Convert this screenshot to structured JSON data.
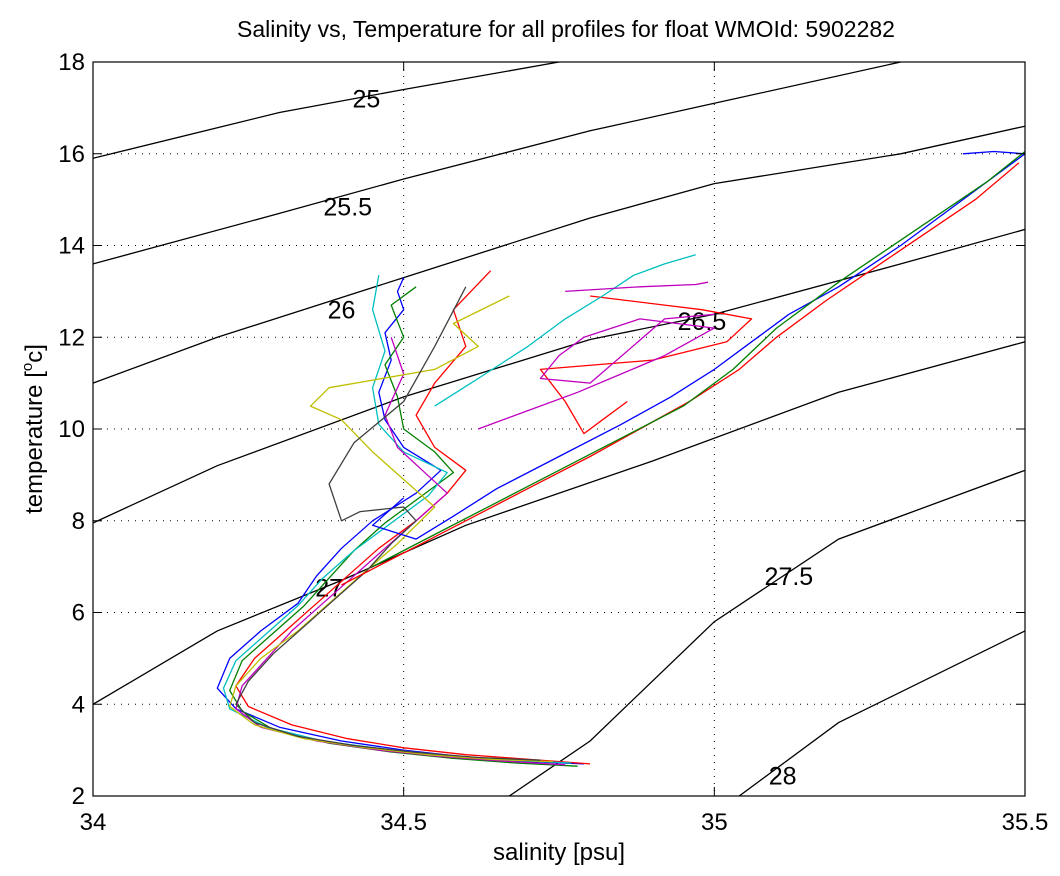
{
  "chart_data": {
    "type": "line",
    "title": "Salinity vs, Temperature for all profiles for float WMOId: 5902282",
    "xlabel": "salinity [psu]",
    "ylabel": "temperature [",
    "ylabel_sup": "o",
    "ylabel_unit": "c]",
    "xlim": [
      34,
      35.5
    ],
    "ylim": [
      2,
      18
    ],
    "xticks": [
      34,
      34.5,
      35,
      35.5
    ],
    "xtick_labels": [
      "34",
      "34.5",
      "35",
      "35.5"
    ],
    "yticks": [
      2,
      4,
      6,
      8,
      10,
      12,
      14,
      16,
      18
    ],
    "ytick_labels": [
      "2",
      "4",
      "6",
      "8",
      "10",
      "12",
      "14",
      "16",
      "18"
    ],
    "grid": true,
    "density_contours": [
      {
        "label": "25",
        "points": [
          [
            34.0,
            15.9
          ],
          [
            34.3,
            16.9
          ],
          [
            34.5,
            17.4
          ],
          [
            34.75,
            18.0
          ]
        ],
        "label_at": [
          34.44,
          17.2
        ]
      },
      {
        "label": "25.5",
        "points": [
          [
            34.0,
            13.6
          ],
          [
            34.3,
            14.7
          ],
          [
            34.5,
            15.45
          ],
          [
            34.8,
            16.5
          ],
          [
            35.0,
            17.1
          ],
          [
            35.3,
            18.0
          ]
        ],
        "label_at": [
          34.41,
          14.85
        ]
      },
      {
        "label": "26",
        "points": [
          [
            34.0,
            11.0
          ],
          [
            34.2,
            12.0
          ],
          [
            34.5,
            13.3
          ],
          [
            34.8,
            14.6
          ],
          [
            35.0,
            15.35
          ],
          [
            35.3,
            16.0
          ],
          [
            35.5,
            16.6
          ]
        ],
        "label_at": [
          34.4,
          12.6
        ]
      },
      {
        "label": "26.5",
        "points": [
          [
            34.0,
            7.95
          ],
          [
            34.2,
            9.2
          ],
          [
            34.5,
            10.7
          ],
          [
            34.8,
            11.95
          ],
          [
            35.0,
            12.5
          ],
          [
            35.3,
            13.6
          ],
          [
            35.5,
            14.35
          ]
        ],
        "label_at": [
          34.98,
          12.35
        ]
      },
      {
        "label": "27",
        "points": [
          [
            34.0,
            4.0
          ],
          [
            34.2,
            5.6
          ],
          [
            34.4,
            6.7
          ],
          [
            34.6,
            7.9
          ],
          [
            34.9,
            9.3
          ],
          [
            35.2,
            10.8
          ],
          [
            35.5,
            11.9
          ]
        ],
        "label_at": [
          34.38,
          6.55
        ]
      },
      {
        "label": "27.5",
        "points": [
          [
            34.67,
            2.0
          ],
          [
            34.8,
            3.2
          ],
          [
            35.0,
            5.8
          ],
          [
            35.2,
            7.6
          ],
          [
            35.5,
            9.1
          ]
        ],
        "label_at": [
          35.12,
          6.8
        ]
      },
      {
        "label": "28",
        "points": [
          [
            35.04,
            2.0
          ],
          [
            35.2,
            3.6
          ],
          [
            35.5,
            5.6
          ]
        ],
        "label_at": [
          35.11,
          2.45
        ]
      }
    ],
    "series": [
      {
        "color": "#0000ff",
        "x": [
          34.79,
          34.7,
          34.6,
          34.5,
          34.4,
          34.3,
          34.23,
          34.2,
          34.22,
          34.27,
          34.33,
          34.36,
          34.4,
          34.45,
          34.52,
          34.56,
          34.5,
          34.47,
          34.46,
          34.48,
          34.47,
          34.5,
          34.49,
          34.5
        ],
        "y": [
          2.7,
          2.75,
          2.85,
          3.0,
          3.2,
          3.5,
          3.9,
          4.35,
          5.0,
          5.6,
          6.2,
          6.8,
          7.4,
          8.0,
          8.6,
          9.1,
          9.6,
          10.2,
          10.8,
          11.5,
          12.1,
          12.6,
          13.0,
          13.3
        ]
      },
      {
        "color": "#008000",
        "x": [
          34.78,
          34.68,
          34.58,
          34.48,
          34.38,
          34.29,
          34.24,
          34.22,
          34.24,
          34.29,
          34.34,
          34.38,
          34.42,
          34.47,
          34.53,
          34.58,
          34.55,
          34.5,
          34.49,
          34.47,
          34.5,
          34.48,
          34.52
        ],
        "y": [
          2.65,
          2.72,
          2.82,
          2.96,
          3.15,
          3.45,
          3.85,
          4.3,
          4.95,
          5.55,
          6.15,
          6.75,
          7.35,
          7.95,
          8.55,
          9.05,
          9.5,
          10.0,
          10.7,
          11.4,
          12.0,
          12.7,
          13.1
        ]
      },
      {
        "color": "#ff0000",
        "x": [
          34.8,
          34.7,
          34.6,
          34.5,
          34.41,
          34.32,
          34.25,
          34.23,
          34.26,
          34.31,
          34.36,
          34.41,
          34.46,
          34.52,
          34.57,
          34.6,
          34.55,
          34.52,
          34.55,
          34.6,
          34.58,
          34.64
        ],
        "y": [
          2.7,
          2.8,
          2.9,
          3.05,
          3.25,
          3.55,
          3.95,
          4.4,
          5.0,
          5.6,
          6.2,
          6.8,
          7.4,
          8.0,
          8.6,
          9.1,
          9.6,
          10.3,
          11.0,
          11.8,
          12.6,
          13.45
        ]
      },
      {
        "color": "#00bfbf",
        "x": [
          34.77,
          34.67,
          34.57,
          34.47,
          34.37,
          34.28,
          34.22,
          34.21,
          34.23,
          34.28,
          34.33,
          34.37,
          34.42,
          34.48,
          34.54,
          34.57,
          34.5,
          34.46,
          34.45,
          34.47,
          34.45,
          34.46
        ],
        "y": [
          2.72,
          2.78,
          2.88,
          3.02,
          3.2,
          3.5,
          3.9,
          4.35,
          4.95,
          5.55,
          6.15,
          6.75,
          7.35,
          7.95,
          8.55,
          9.05,
          9.5,
          10.1,
          10.9,
          11.7,
          12.6,
          13.35
        ]
      },
      {
        "color": "#bf00bf",
        "x": [
          34.76,
          34.66,
          34.56,
          34.46,
          34.36,
          34.27,
          34.23,
          34.24,
          34.28,
          34.32,
          34.37,
          34.42,
          34.47,
          34.52,
          34.57,
          34.53,
          34.49,
          34.47,
          34.5,
          34.48
        ],
        "y": [
          2.68,
          2.76,
          2.86,
          3.0,
          3.2,
          3.5,
          3.9,
          4.4,
          5.0,
          5.6,
          6.2,
          6.8,
          7.4,
          8.0,
          8.6,
          9.1,
          9.6,
          10.3,
          11.2,
          12.0
        ]
      },
      {
        "color": "#bfbf00",
        "x": [
          34.74,
          34.64,
          34.54,
          34.44,
          34.34,
          34.26,
          34.22,
          34.23,
          34.27,
          34.33,
          34.38,
          34.43,
          34.49,
          34.55,
          34.5,
          34.45,
          34.4,
          34.35,
          34.38,
          34.55,
          34.62,
          34.58,
          34.67
        ],
        "y": [
          2.75,
          2.8,
          2.9,
          3.05,
          3.25,
          3.55,
          3.95,
          4.4,
          5.0,
          5.6,
          6.2,
          6.8,
          7.5,
          8.3,
          8.9,
          9.5,
          10.2,
          10.5,
          10.9,
          11.3,
          11.8,
          12.3,
          12.9
        ]
      },
      {
        "color": "#404040",
        "x": [
          34.72,
          34.62,
          34.52,
          34.42,
          34.33,
          34.26,
          34.23,
          34.25,
          34.29,
          34.34,
          34.39,
          34.44,
          34.48,
          34.52,
          34.5,
          34.43,
          34.4,
          34.38,
          34.42,
          34.5,
          34.55,
          34.6
        ],
        "y": [
          2.78,
          2.84,
          2.95,
          3.1,
          3.3,
          3.6,
          4.0,
          4.5,
          5.1,
          5.7,
          6.3,
          6.9,
          7.5,
          8.0,
          8.3,
          8.2,
          8.0,
          8.8,
          9.7,
          10.6,
          11.8,
          13.1
        ]
      },
      {
        "color": "#0000ff",
        "x": [
          34.5,
          34.45,
          34.52,
          34.58,
          34.65,
          34.75,
          34.85,
          34.93,
          35.0,
          35.06,
          35.12,
          35.2,
          35.3,
          35.4,
          35.5,
          35.45,
          35.4
        ],
        "y": [
          8.5,
          7.9,
          7.6,
          8.1,
          8.7,
          9.4,
          10.1,
          10.7,
          11.3,
          11.9,
          12.5,
          13.1,
          14.0,
          15.0,
          16.0,
          16.05,
          16.0
        ]
      },
      {
        "color": "#ff0000",
        "x": [
          34.4,
          34.5,
          34.6,
          34.7,
          34.8,
          34.88,
          34.96,
          35.04,
          35.1,
          35.18,
          35.3,
          35.42,
          35.49
        ],
        "y": [
          6.6,
          7.3,
          8.0,
          8.7,
          9.4,
          10.0,
          10.6,
          11.3,
          12.0,
          12.8,
          13.9,
          15.0,
          15.8
        ]
      },
      {
        "color": "#008000",
        "x": [
          34.45,
          34.55,
          34.65,
          34.75,
          34.85,
          34.95,
          35.03,
          35.1,
          35.2,
          35.32,
          35.44,
          35.5
        ],
        "y": [
          7.0,
          7.7,
          8.4,
          9.1,
          9.8,
          10.5,
          11.3,
          12.2,
          13.2,
          14.3,
          15.4,
          16.05
        ]
      },
      {
        "color": "#ff0000",
        "x": [
          34.86,
          34.82,
          34.79,
          34.76,
          34.72,
          34.9,
          35.02,
          35.06,
          34.98,
          34.92,
          34.8
        ],
        "y": [
          10.6,
          10.2,
          9.9,
          10.6,
          11.3,
          11.5,
          11.9,
          12.4,
          12.6,
          12.7,
          12.9
        ]
      },
      {
        "color": "#bf00bf",
        "x": [
          34.62,
          34.7,
          34.78,
          34.85,
          34.92,
          35.0,
          34.88,
          34.79,
          34.75,
          34.72,
          34.8,
          34.92,
          35.0
        ],
        "y": [
          10.0,
          10.4,
          10.8,
          11.2,
          11.6,
          12.2,
          12.4,
          12.0,
          11.6,
          11.1,
          11.0,
          12.4,
          12.5
        ]
      },
      {
        "color": "#00bfbf",
        "x": [
          34.55,
          34.62,
          34.7,
          34.76,
          34.82,
          34.87,
          34.92,
          34.97
        ],
        "y": [
          10.5,
          11.1,
          11.8,
          12.4,
          12.9,
          13.35,
          13.6,
          13.8
        ]
      },
      {
        "color": "#bf00bf",
        "x": [
          34.76,
          34.88,
          34.97,
          34.99
        ],
        "y": [
          13.0,
          13.1,
          13.15,
          13.2
        ]
      }
    ]
  }
}
